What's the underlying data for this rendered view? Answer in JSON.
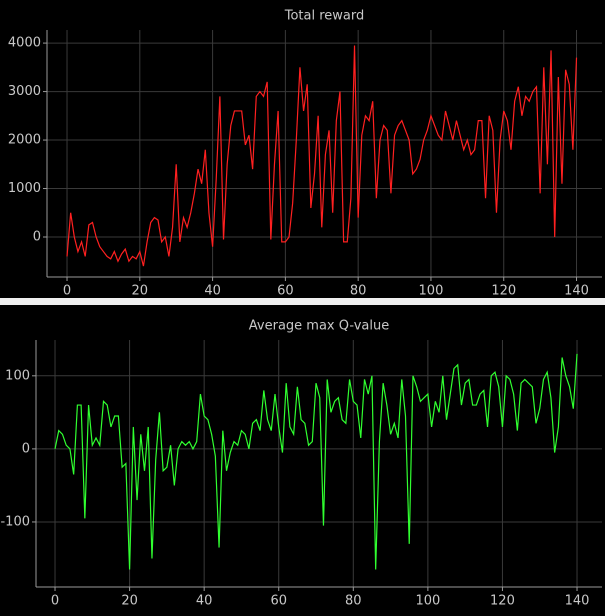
{
  "chart_data": [
    {
      "type": "line",
      "title": "Total reward",
      "x": [
        0,
        1,
        2,
        3,
        4,
        5,
        6,
        7,
        8,
        9,
        10,
        11,
        12,
        13,
        14,
        15,
        16,
        17,
        18,
        19,
        20,
        21,
        22,
        23,
        24,
        25,
        26,
        27,
        28,
        29,
        30,
        31,
        32,
        33,
        34,
        35,
        36,
        37,
        38,
        39,
        40,
        41,
        42,
        43,
        44,
        45,
        46,
        47,
        48,
        49,
        50,
        51,
        52,
        53,
        54,
        55,
        56,
        57,
        58,
        59,
        60,
        61,
        62,
        63,
        64,
        65,
        66,
        67,
        68,
        69,
        70,
        71,
        72,
        73,
        74,
        75,
        76,
        77,
        78,
        79,
        80,
        81,
        82,
        83,
        84,
        85,
        86,
        87,
        88,
        89,
        90,
        91,
        92,
        93,
        94,
        95,
        96,
        97,
        98,
        99,
        100,
        101,
        102,
        103,
        104,
        105,
        106,
        107,
        108,
        109,
        110,
        111,
        112,
        113,
        114,
        115,
        116,
        117,
        118,
        119,
        120,
        121,
        122,
        123,
        124,
        125,
        126,
        127,
        128,
        129,
        130,
        131,
        132,
        133,
        134,
        135,
        136,
        137,
        138,
        139,
        140
      ],
      "series": [
        {
          "name": "Total reward",
          "color": "#ff2020",
          "values": [
            -400,
            500,
            0,
            -300,
            -100,
            -400,
            250,
            300,
            0,
            -200,
            -300,
            -400,
            -450,
            -300,
            -500,
            -350,
            -250,
            -500,
            -400,
            -450,
            -300,
            -600,
            -100,
            300,
            400,
            350,
            -100,
            0,
            -400,
            200,
            1500,
            -100,
            400,
            200,
            500,
            900,
            1400,
            1100,
            1800,
            500,
            -200,
            1200,
            2900,
            -50,
            1500,
            2300,
            2600,
            2600,
            2600,
            1900,
            2100,
            1400,
            2900,
            3000,
            2900,
            3200,
            -50,
            1500,
            2600,
            -100,
            -100,
            0,
            700,
            2000,
            3500,
            2600,
            3150,
            600,
            1300,
            2500,
            200,
            1700,
            2200,
            500,
            2400,
            3000,
            -100,
            -100,
            800,
            3950,
            400,
            2100,
            2500,
            2400,
            2800,
            800,
            2000,
            2300,
            2200,
            900,
            2100,
            2300,
            2400,
            2200,
            2000,
            1300,
            1400,
            1600,
            2000,
            2200,
            2500,
            2300,
            2100,
            2000,
            2600,
            2300,
            2000,
            2400,
            2100,
            1800,
            2000,
            1700,
            1800,
            2400,
            2400,
            800,
            2500,
            2200,
            500,
            2000,
            2600,
            2400,
            1800,
            2800,
            3100,
            2500,
            2900,
            2800,
            3000,
            3100,
            900,
            3500,
            1500,
            3850,
            0,
            3300,
            1100,
            3450,
            3150,
            1800,
            3700
          ]
        }
      ],
      "xlim": [
        -5.5,
        147
      ],
      "ylim": [
        -825,
        4270
      ],
      "xticks": [
        0,
        20,
        40,
        60,
        80,
        100,
        120,
        140
      ],
      "yticks": [
        0,
        1000,
        2000,
        3000,
        4000
      ],
      "grid": true
    },
    {
      "type": "line",
      "title": "Average max Q-value",
      "x": [
        0,
        1,
        2,
        3,
        4,
        5,
        6,
        7,
        8,
        9,
        10,
        11,
        12,
        13,
        14,
        15,
        16,
        17,
        18,
        19,
        20,
        21,
        22,
        23,
        24,
        25,
        26,
        27,
        28,
        29,
        30,
        31,
        32,
        33,
        34,
        35,
        36,
        37,
        38,
        39,
        40,
        41,
        42,
        43,
        44,
        45,
        46,
        47,
        48,
        49,
        50,
        51,
        52,
        53,
        54,
        55,
        56,
        57,
        58,
        59,
        60,
        61,
        62,
        63,
        64,
        65,
        66,
        67,
        68,
        69,
        70,
        71,
        72,
        73,
        74,
        75,
        76,
        77,
        78,
        79,
        80,
        81,
        82,
        83,
        84,
        85,
        86,
        87,
        88,
        89,
        90,
        91,
        92,
        93,
        94,
        95,
        96,
        97,
        98,
        99,
        100,
        101,
        102,
        103,
        104,
        105,
        106,
        107,
        108,
        109,
        110,
        111,
        112,
        113,
        114,
        115,
        116,
        117,
        118,
        119,
        120,
        121,
        122,
        123,
        124,
        125,
        126,
        127,
        128,
        129,
        130,
        131,
        132,
        133,
        134,
        135,
        136,
        137,
        138,
        139,
        140
      ],
      "series": [
        {
          "name": "Average max Q-value",
          "color": "#30ff30",
          "values": [
            0,
            25,
            20,
            5,
            0,
            -35,
            60,
            60,
            -95,
            60,
            5,
            15,
            5,
            65,
            60,
            30,
            45,
            45,
            -25,
            -20,
            -165,
            30,
            -70,
            20,
            -30,
            30,
            -150,
            -15,
            50,
            -30,
            -25,
            5,
            -50,
            0,
            10,
            5,
            10,
            0,
            10,
            75,
            45,
            40,
            20,
            -10,
            -135,
            25,
            -30,
            -5,
            10,
            5,
            25,
            20,
            0,
            35,
            40,
            25,
            80,
            40,
            25,
            75,
            30,
            -5,
            90,
            30,
            20,
            85,
            40,
            35,
            5,
            10,
            90,
            70,
            -105,
            95,
            50,
            65,
            70,
            40,
            35,
            95,
            65,
            60,
            15,
            95,
            75,
            100,
            -165,
            10,
            90,
            60,
            20,
            35,
            15,
            95,
            45,
            -130,
            100,
            85,
            65,
            70,
            75,
            30,
            65,
            50,
            100,
            40,
            75,
            110,
            115,
            60,
            90,
            95,
            60,
            60,
            75,
            80,
            30,
            100,
            105,
            85,
            30,
            100,
            95,
            75,
            25,
            90,
            95,
            90,
            85,
            35,
            55,
            95,
            105,
            70,
            -5,
            30,
            125,
            100,
            85,
            55,
            130
          ]
        }
      ],
      "xlim": [
        -5.1,
        146.7
      ],
      "ylim": [
        -189,
        149
      ],
      "xticks": [
        0,
        20,
        40,
        60,
        80,
        100,
        120,
        140
      ],
      "yticks": [
        -100,
        0,
        100
      ],
      "grid": true
    }
  ]
}
